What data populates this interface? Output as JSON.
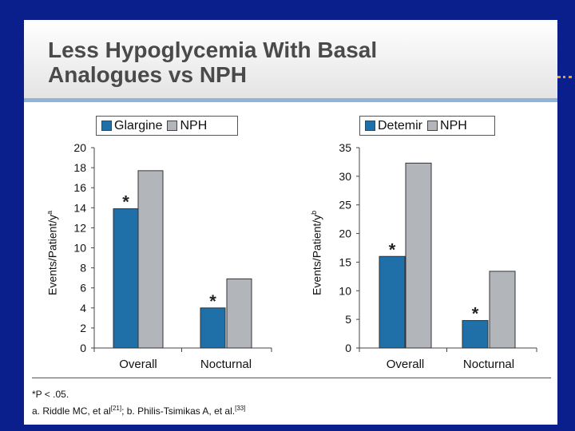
{
  "slide": {
    "title_line1": "Less Hypoglycemia With Basal",
    "title_line2": "Analogues vs NPH",
    "footnote_line1": "*P < .05.",
    "footnote_line2_a": "a. Riddle MC, et al",
    "footnote_ref_a": "[21]",
    "footnote_line2_b": "; b. Philis-Tsimikas A, et al.",
    "footnote_ref_b": "[33]",
    "accent_color": "#8fb4dc",
    "background_color": "#0a1e8c"
  },
  "chart_data": [
    {
      "type": "bar",
      "categories": [
        "Overall",
        "Nocturnal"
      ],
      "series": [
        {
          "name": "Glargine",
          "values": [
            13.9,
            4.0
          ],
          "color": "#1f6fa8"
        },
        {
          "name": "NPH",
          "values": [
            17.7,
            6.9
          ],
          "color": "#b2b6bb"
        }
      ],
      "annotations": [
        {
          "category": "Overall",
          "series": "Glargine",
          "text": "*"
        },
        {
          "category": "Nocturnal",
          "series": "Glargine",
          "text": "*"
        }
      ],
      "ylabel": "Events/Patient/y",
      "ylabel_sup": "a",
      "ylim": [
        0,
        20
      ],
      "yticks": [
        0,
        2,
        4,
        6,
        8,
        10,
        12,
        14,
        16,
        18,
        20
      ],
      "legend_placement": "top",
      "grid": false
    },
    {
      "type": "bar",
      "categories": [
        "Overall",
        "Nocturnal"
      ],
      "series": [
        {
          "name": "Detemir",
          "values": [
            16.0,
            4.8
          ],
          "color": "#1f6fa8"
        },
        {
          "name": "NPH",
          "values": [
            32.3,
            13.4
          ],
          "color": "#b2b6bb"
        }
      ],
      "annotations": [
        {
          "category": "Overall",
          "series": "Detemir",
          "text": "*"
        },
        {
          "category": "Nocturnal",
          "series": "Detemir",
          "text": "*"
        }
      ],
      "ylabel": "Events/Patient/y",
      "ylabel_sup": "b",
      "ylim": [
        0,
        35
      ],
      "yticks": [
        0,
        5,
        10,
        15,
        20,
        25,
        30,
        35
      ],
      "legend_placement": "top",
      "grid": false
    }
  ]
}
